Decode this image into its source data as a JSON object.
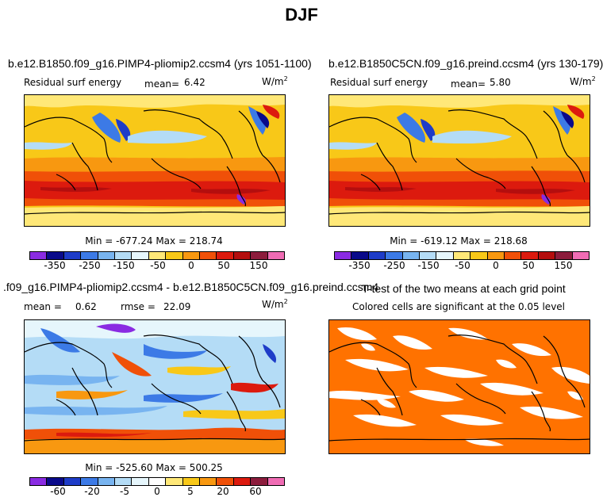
{
  "page_title": "DJF",
  "units": "W/m",
  "units_exp": "2",
  "panels": [
    {
      "title": "b.e12.B1850.f09_g16.PIMP4-pliomip2.ccsm4 (yrs 1051-1100)",
      "variable": "Residual surf energy",
      "mean_label": "mean=",
      "mean_value": "6.42",
      "minmax": "Min = -677.24 Max = 218.74",
      "colorbar_ticks": [
        "-350",
        "-250",
        "-150",
        "-50",
        "0",
        "50",
        "150"
      ]
    },
    {
      "title": "b.e12.B1850C5CN.f09_g16.preind.ccsm4 (yrs 130-179)",
      "variable": "Residual surf energy",
      "mean_label": "mean=",
      "mean_value": "5.80",
      "minmax": "Min = -619.12 Max = 218.68",
      "colorbar_ticks": [
        "-350",
        "-250",
        "-150",
        "-50",
        "0",
        "50",
        "150"
      ]
    },
    {
      "title": ".f09_g16.PIMP4-pliomip2.ccsm4 - b.e12.B1850C5CN.f09_g16.preind.ccsm4",
      "mean_label": "mean =",
      "mean_value": "0.62",
      "rmse_label": "rmse =",
      "rmse_value": "22.09",
      "minmax": "Min = -525.60 Max = 500.25",
      "colorbar_ticks": [
        "-60",
        "-20",
        "-5",
        "0",
        "5",
        "20",
        "60"
      ]
    },
    {
      "title": "T-test of the two means at each grid point",
      "subtitle": "Colored cells are significant at the 0.05 level"
    }
  ],
  "colors": {
    "abs_scale": [
      "#8a2be2",
      "#0a0a8a",
      "#1e3cc8",
      "#3c7ae6",
      "#78b4f0",
      "#b4dcf6",
      "#e6f6fc",
      "#ffe878",
      "#f8c818",
      "#f89810",
      "#f05008",
      "#dc1a0e",
      "#b40e0e",
      "#8c1c3c",
      "#f06cb4"
    ],
    "diff_scale": [
      "#8a2be2",
      "#0a0a8a",
      "#1e3cc8",
      "#3c7ae6",
      "#78b4f0",
      "#b4dcf6",
      "#e6f6fc",
      "#ffffff",
      "#ffe878",
      "#f8c818",
      "#f89810",
      "#f05008",
      "#dc1a0e",
      "#8c1c3c",
      "#f06cb4"
    ],
    "ttest": "#ff7200"
  }
}
